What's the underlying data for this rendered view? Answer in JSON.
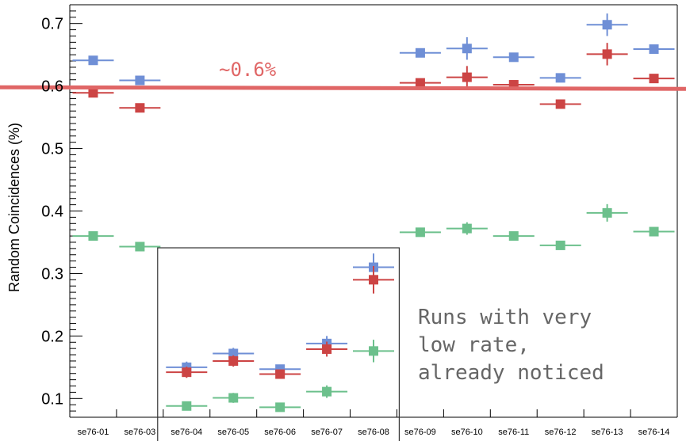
{
  "chart_data": {
    "type": "scatter",
    "ylabel": "Random Coincidences (%)",
    "xlabel": "",
    "ylim": [
      0.07,
      0.73
    ],
    "yticks": [
      "0.1",
      "0.2",
      "0.3",
      "0.4",
      "0.5",
      "0.6",
      "0.7"
    ],
    "categories": [
      "se76-01",
      "se76-03",
      "se76-04",
      "se76-05",
      "se76-06",
      "se76-07",
      "se76-08",
      "se76-09",
      "se76-10",
      "se76-11",
      "se76-12",
      "se76-13",
      "se76-14"
    ],
    "series": [
      {
        "color": "#6f8fd6",
        "values": [
          0.641,
          0.609,
          0.15,
          0.172,
          0.147,
          0.188,
          0.31,
          0.653,
          0.66,
          0.646,
          0.613,
          0.698,
          0.659
        ],
        "yerr": [
          0.004,
          0.005,
          0.009,
          0.009,
          0.007,
          0.012,
          0.022,
          0.006,
          0.018,
          0.006,
          0.004,
          0.018,
          0.005
        ]
      },
      {
        "color": "#cc4444",
        "values": [
          0.589,
          0.565,
          0.142,
          0.16,
          0.139,
          0.179,
          0.29,
          0.605,
          0.614,
          0.602,
          0.571,
          0.651,
          0.612
        ],
        "yerr": [
          0.004,
          0.005,
          0.009,
          0.009,
          0.007,
          0.012,
          0.022,
          0.006,
          0.018,
          0.006,
          0.004,
          0.018,
          0.005
        ]
      },
      {
        "color": "#6cc08c",
        "values": [
          0.36,
          0.343,
          0.088,
          0.101,
          0.086,
          0.111,
          0.176,
          0.366,
          0.372,
          0.36,
          0.345,
          0.397,
          0.367
        ],
        "yerr": [
          0.003,
          0.004,
          0.007,
          0.008,
          0.005,
          0.01,
          0.018,
          0.005,
          0.01,
          0.004,
          0.003,
          0.014,
          0.004
        ]
      }
    ],
    "reference_line": {
      "value": 0.598,
      "color": "#e06666",
      "label": "~0.6%"
    },
    "highlight": {
      "from": "se76-04",
      "to": "se76-08",
      "label_lines": [
        "Runs with very",
        "low rate,",
        "already noticed"
      ]
    }
  }
}
